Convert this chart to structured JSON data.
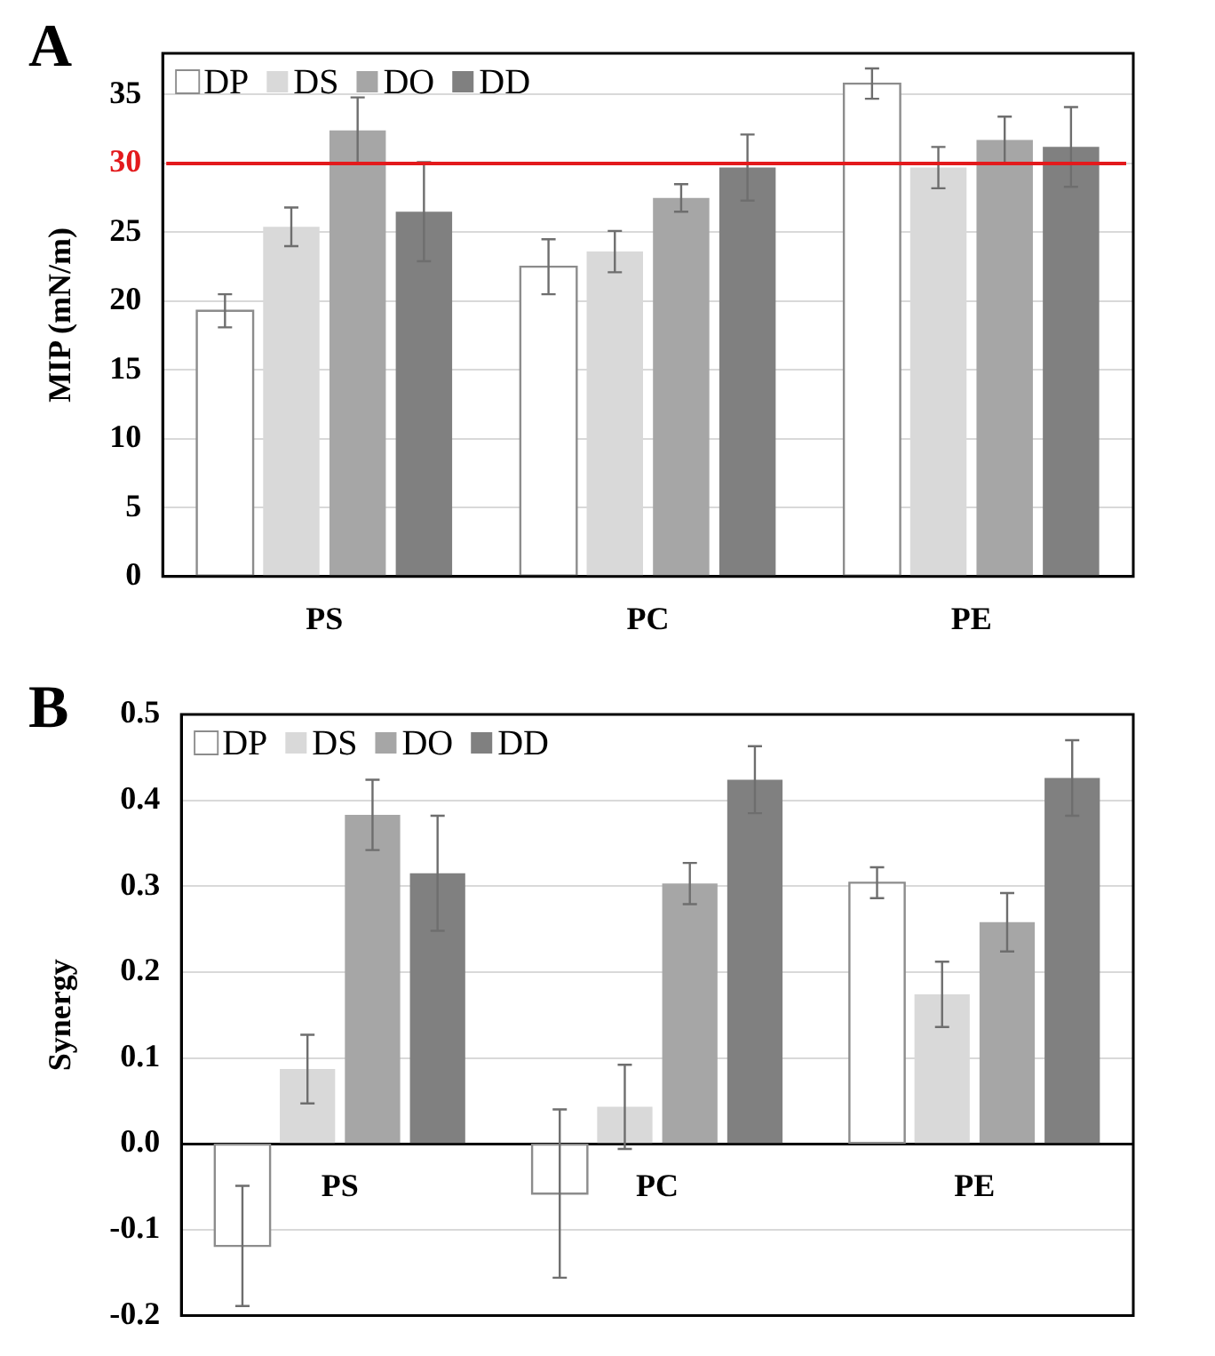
{
  "chart_data": [
    {
      "type": "bar",
      "title": "A",
      "ylabel": "MIP (mN/m)",
      "categories": [
        "PS",
        "PC",
        "PE"
      ],
      "ylim": [
        0,
        38
      ],
      "yticks": [
        0,
        5,
        10,
        15,
        20,
        25,
        30,
        35
      ],
      "grid": "y",
      "legend": "top left",
      "ref_lines": [
        {
          "axis": "y",
          "value": 30,
          "color": "#e31a1c"
        }
      ],
      "series": [
        {
          "name": "DP",
          "color": "#ffffff",
          "values": [
            19.3,
            22.5,
            35.8
          ],
          "errors": [
            1.2,
            2.0,
            1.1
          ]
        },
        {
          "name": "DS",
          "color": "#d9d9d9",
          "values": [
            25.4,
            23.6,
            29.7
          ],
          "errors": [
            1.4,
            1.5,
            1.5
          ]
        },
        {
          "name": "DO",
          "color": "#a6a6a6",
          "values": [
            32.4,
            27.5,
            31.7
          ],
          "errors": [
            2.4,
            1.0,
            1.7
          ]
        },
        {
          "name": "DD",
          "color": "#808080",
          "values": [
            26.5,
            29.7,
            31.2
          ],
          "errors": [
            3.6,
            2.4,
            2.9
          ]
        }
      ]
    },
    {
      "type": "bar",
      "title": "B",
      "ylabel": "Synergy",
      "categories": [
        "PS",
        "PC",
        "PE"
      ],
      "ylim": [
        -0.2,
        0.5
      ],
      "yticks": [
        -0.2,
        -0.1,
        {
          "value": 0,
          "label": "0.0"
        },
        0.1,
        0.2,
        0.3,
        0.4,
        0.5
      ],
      "grid": "y",
      "legend": "top left",
      "series": [
        {
          "name": "DP",
          "color": "#ffffff",
          "values": [
            -0.119,
            -0.058,
            0.304
          ],
          "errors": [
            0.07,
            0.098,
            0.018
          ]
        },
        {
          "name": "DS",
          "color": "#d9d9d9",
          "values": [
            0.087,
            0.043,
            0.174
          ],
          "errors": [
            0.04,
            0.049,
            0.038
          ]
        },
        {
          "name": "DO",
          "color": "#a6a6a6",
          "values": [
            0.383,
            0.303,
            0.258
          ],
          "errors": [
            0.041,
            0.024,
            0.034
          ]
        },
        {
          "name": "DD",
          "color": "#808080",
          "values": [
            0.315,
            0.424,
            0.426
          ],
          "errors": [
            0.067,
            0.039,
            0.044
          ]
        }
      ]
    }
  ]
}
